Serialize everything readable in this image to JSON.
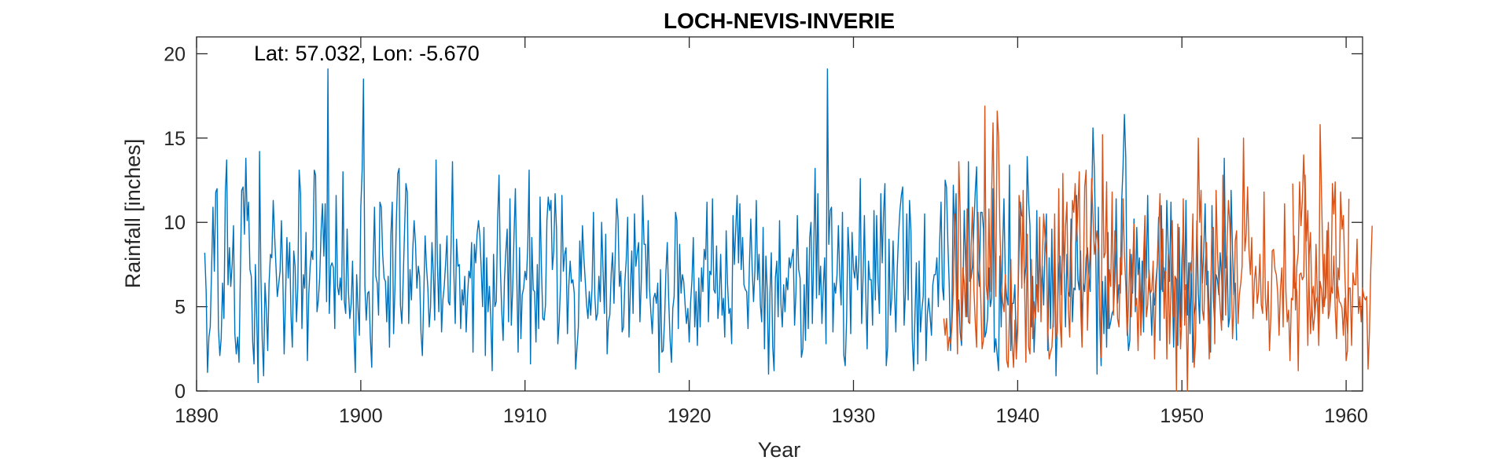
{
  "chart_data": {
    "type": "line",
    "title": "LOCH-NEVIS-INVERIE",
    "xlabel": "Year",
    "ylabel": "Rainfall [inches]",
    "annotation": "Lat: 57.032, Lon: -5.670",
    "xlim": [
      1890,
      1961
    ],
    "ylim": [
      0,
      21
    ],
    "x_ticks": [
      1890,
      1900,
      1910,
      1920,
      1930,
      1940,
      1950,
      1960
    ],
    "y_ticks": [
      0,
      5,
      10,
      15,
      20
    ],
    "grid": false,
    "series": [
      {
        "color": "#0072BD",
        "x_start": 1890.5,
        "step": 0.08333,
        "values": [
          8.2,
          5.9,
          1.1,
          3.2,
          3.8,
          7.2,
          10.9,
          7.1,
          11.8,
          12.0,
          3.7,
          2.1,
          3.1,
          6.4,
          4.3,
          11.8,
          13.7,
          6.3,
          8.5,
          6.2,
          7.5,
          9.8,
          3.4,
          2.2,
          3.2,
          1.7,
          6.9,
          11.9,
          12.1,
          9.3,
          13.8,
          10.1,
          11.2,
          7.2,
          6.8,
          2.9,
          1.6,
          7.5,
          4.2,
          0.5,
          14.2,
          6.9,
          3.1,
          0.9,
          6.4,
          4.8,
          2.4,
          6.4,
          8.1,
          7.9,
          11.3,
          9.3,
          7.4,
          5.6,
          6.3,
          7.1,
          10.1,
          6.8,
          2.2,
          5.4,
          9.1,
          6.7,
          8.8,
          4.5,
          2.6,
          8.3,
          7.4,
          4.1,
          6.2,
          13.1,
          11.7,
          3.7,
          6.9,
          6.1,
          9.4,
          1.8,
          5.7,
          7.4,
          8.3,
          7.8,
          13.1,
          12.8,
          4.7,
          5.4,
          6.7,
          9.5,
          11.1,
          8.0,
          11.1,
          5.3,
          19.1,
          4.6,
          7.4,
          7.6,
          7.3,
          3.7,
          11.6,
          6.2,
          5.7,
          6.7,
          5.4,
          13.0,
          5.3,
          4.6,
          9.6,
          5.9,
          4.3,
          5.2,
          7.7,
          3.4,
          1.1,
          6.9,
          4.9,
          3.3,
          10.9,
          13.1,
          18.5,
          6.2,
          4.2,
          5.8,
          5.9,
          3.2,
          1.4,
          7.2,
          10.9,
          6.8,
          6.4,
          4.5,
          11.2,
          10.9,
          8.1,
          6.7,
          6.5,
          4.1,
          6.8,
          2.6,
          9.3,
          11.2,
          3.4,
          6.2,
          10.1,
          12.9,
          13.2,
          5.1,
          4.0,
          6.6,
          9.6,
          12.3,
          11.8,
          4.0,
          7.2,
          5.4,
          8.4,
          10.1,
          8.7,
          6.1,
          7.4,
          6.8,
          3.5,
          2.1,
          5.5,
          9.2,
          7.4,
          6.1,
          3.8,
          5.0,
          8.8,
          7.0,
          4.2,
          13.7,
          7.6,
          4.7,
          8.7,
          3.5,
          5.4,
          6.2,
          7.6,
          9.2,
          5.3,
          5.1,
          8.6,
          13.6,
          7.1,
          4.0,
          9.0,
          7.4,
          7.5,
          3.7,
          6.0,
          5.1,
          6.8,
          3.5,
          5.6,
          7.1,
          6.7,
          8.8,
          2.3,
          8.7,
          7.6,
          9.3,
          10.1,
          9.2,
          7.3,
          5.0,
          9.7,
          2.1,
          7.9,
          4.7,
          6.2,
          4.3,
          1.2,
          8.1,
          5.0,
          5.3,
          10.1,
          12.8,
          7.3,
          4.8,
          3.0,
          6.6,
          8.3,
          9.6,
          4.1,
          11.4,
          3.9,
          6.1,
          9.3,
          12.0,
          6.7,
          2.3,
          8.5,
          3.1,
          5.7,
          6.1,
          7.1,
          6.6,
          8.5,
          13.1,
          1.6,
          9.1,
          6.0,
          5.9,
          2.9,
          7.5,
          3.7,
          11.5,
          7.4,
          4.3,
          4.2,
          5.1,
          10.1,
          11.5,
          10.7,
          11.3,
          7.2,
          8.3,
          11.7,
          9.6,
          2.8,
          4.1,
          6.4,
          11.6,
          7.1,
          8.1,
          8.5,
          3.4,
          6.2,
          7.7,
          6.4,
          6.6,
          5.8,
          1.3,
          2.6,
          3.8,
          8.9,
          6.5,
          9.8,
          7.9,
          6.6,
          5.1,
          4.3,
          5.9,
          4.5,
          6.1,
          10.6,
          5.7,
          4.2,
          4.6,
          6.8,
          5.3,
          10.0,
          7.3,
          4.6,
          9.3,
          2.2,
          4.1,
          4.5,
          7.0,
          8.2,
          5.2,
          8.3,
          11.4,
          10.1,
          6.2,
          7.1,
          3.5,
          3.8,
          6.5,
          7.8,
          10.3,
          3.2,
          6.1,
          8.3,
          4.6,
          10.5,
          7.4,
          8.2,
          8.8,
          4.1,
          6.6,
          11.6,
          8.7,
          8.7,
          5.5,
          10.1,
          6.1,
          4.6,
          3.4,
          5.5,
          5.8,
          5.2,
          6.4,
          1.1,
          7.2,
          2.3,
          2.4,
          4.3,
          7.1,
          8.8,
          5.4,
          3.1,
          1.7,
          4.9,
          5.6,
          10.6,
          10.1,
          3.7,
          8.7,
          5.8,
          6.9,
          6.5,
          5.1,
          4.0,
          4.9,
          2.9,
          5.2,
          6.6,
          9.1,
          3.8,
          5.9,
          2.7,
          6.7,
          3.8,
          7.3,
          5.9,
          8.4,
          7.8,
          11.2,
          4.1,
          7.1,
          6.9,
          11.4,
          6.0,
          5.8,
          8.6,
          4.3,
          5.6,
          8.1,
          4.5,
          5.5,
          3.2,
          9.5,
          6.4,
          4.6,
          4.9,
          2.8,
          10.4,
          7.5,
          9.6,
          11.6,
          7.6,
          11.1,
          7.2,
          9.1,
          6.3,
          6.0,
          5.9,
          3.7,
          7.5,
          10.2,
          7.2,
          5.3,
          7.1,
          11.3,
          6.6,
          8.1,
          5.1,
          4.1,
          9.7,
          2.5,
          8.0,
          6.0,
          1.0,
          5.8,
          8.2,
          2.6,
          1.2,
          6.7,
          7.7,
          4.4,
          10.1,
          5.2,
          3.8,
          6.3,
          4.7,
          6.7,
          6.0,
          7.9,
          7.3,
          7.9,
          8.4,
          3.9,
          5.9,
          10.4,
          7.2,
          6.7,
          2.0,
          2.5,
          6.3,
          3.0,
          8.5,
          3.7,
          9.1,
          10.0,
          4.0,
          8.4,
          13.2,
          5.5,
          11.7,
          5.7,
          7.4,
          4.0,
          6.3,
          7.9,
          2.8,
          19.1,
          8.7,
          10.7,
          10.9,
          3.5,
          6.4,
          5.8,
          6.9,
          9.8,
          6.8,
          5.1,
          10.6,
          2.1,
          1.5,
          4.3,
          9.7,
          8.0,
          3.4,
          9.4,
          7.2,
          6.7,
          8.0,
          6.0,
          7.9,
          12.6,
          4.0,
          6.6,
          10.4,
          5.8,
          2.5,
          7.7,
          6.6,
          6.6,
          3.9,
          10.7,
          5.4,
          10.4,
          6.5,
          4.6,
          11.7,
          7.6,
          10.6,
          12.3,
          1.5,
          2.6,
          9.0,
          4.5,
          5.5,
          8.9,
          5.9,
          3.5,
          7.3,
          9.3,
          10.7,
          11.6,
          12.1,
          3.9,
          5.8,
          10.5,
          5.4,
          11.3,
          9.5,
          3.1,
          1.2,
          4.6,
          7.6,
          1.6,
          7.7,
          3.5,
          4.8,
          5.6,
          10.5,
          1.8,
          4.5,
          5.5,
          4.5,
          3.3,
          6.3,
          6.9,
          6.9,
          7.9,
          5.0,
          8.8,
          11.2,
          6.2,
          5.4,
          12.5,
          12.1,
          8.7,
          6.3,
          2.4,
          4.9,
          12.2,
          9.3,
          11.7,
          4.3,
          5.4,
          3.5,
          2.7,
          5.8,
          10.7,
          7.6,
          4.4,
          13.6,
          6.5,
          6.7,
          7.4,
          9.7,
          11.8,
          13.3,
          7.2,
          6.2,
          10.6,
          10.6,
          9.6,
          3.2,
          3.5,
          4.3,
          7.3,
          5.0,
          5.5,
          12.0,
          2.3,
          3.1,
          2.2,
          1.2,
          8.0,
          3.8,
          8.5,
          11.4,
          6.5,
          5.6,
          5.1,
          13.4,
          2.4,
          5.2,
          5.2,
          6.3,
          2.4,
          4.2,
          8.2,
          11.2,
          10.4,
          10.3,
          6.4,
          7.4,
          13.9,
          11.3,
          9.8,
          3.8,
          6.8,
          2.3,
          4.7,
          10.7,
          4.7,
          8.5,
          5.8,
          7.4,
          5.1,
          8.7,
          10.5,
          2.4,
          7.9,
          3.7,
          9.6,
          3.8,
          7.9,
          0.9,
          4.2,
          7.2,
          8.0,
          5.7,
          9.5,
          7.2,
          3.8,
          8.1,
          5.9,
          5.6,
          10.2,
          4.1,
          6.1,
          6.0,
          11.6,
          6.6,
          6.0,
          8.3,
          3.8,
          6.4,
          5.9,
          7.9,
          8.5,
          6.9,
          5.9,
          10.5,
          15.6,
          13.2,
          9.1,
          1.0,
          10.9,
          4.0,
          1.5,
          6.5,
          3.4,
          6.8,
          2.6,
          9.4,
          3.7,
          4.1,
          4.6,
          4.8,
          6.5,
          11.4,
          5.2,
          6.3,
          5.8,
          11.2,
          13.2,
          16.4,
          13.9,
          4.1,
          2.4,
          3.0,
          8.1,
          5.8,
          10.2,
          4.7,
          9.7,
          6.9,
          7.9,
          4.4,
          7.7,
          3.5,
          9.8,
          6.7,
          11.6,
          6.2,
          5.6,
          3.3,
          5.8,
          5.1,
          6.5,
          7.5,
          10.3,
          3.0,
          11.0,
          5.9,
          7.3,
          5.8,
          11.3,
          8.5,
          6.5,
          11.2,
          6.4,
          2.6,
          6.8,
          6.6,
          2.7,
          9.7,
          3.8,
          7.8,
          9.6,
          6.0,
          11.3,
          4.5,
          7.6,
          3.4,
          7.7,
          1.7,
          4.5,
          5.3,
          10.1,
          5.8,
          4.0,
          9.2,
          6.4,
          8.3,
          11.1,
          6.3,
          7.1,
          4.4,
          2.3,
          11.0,
          5.4,
          4.0,
          6.9,
          6.6,
          5.7,
          8.2,
          6.8,
          4.2,
          13.8,
          7.3,
          8.0,
          3.8,
          4.4,
          11.9,
          8.3,
          5.7,
          6.4,
          3.0
        ]
      },
      {
        "color": "#D95319",
        "x_start": 1935.5,
        "step": 0.08333,
        "values": [
          4.3,
          3.3,
          4.3,
          2.4,
          3.2,
          2.8,
          3.9,
          6.2,
          10.5,
          6.5,
          2.2,
          13.6,
          10.5,
          3.0,
          7.3,
          6.4,
          4.4,
          10.8,
          4.1,
          4.0,
          8.6,
          10.9,
          6.0,
          4.1,
          2.6,
          10.6,
          7.7,
          5.5,
          2.5,
          3.0,
          16.9,
          6.3,
          5.4,
          10.8,
          5.9,
          11.8,
          15.9,
          9.5,
          5.6,
          16.6,
          15.1,
          9.6,
          6.5,
          5.3,
          4.7,
          6.9,
          1.8,
          1.4,
          4.6,
          7.8,
          2.8,
          1.4,
          4.2,
          1.9,
          3.6,
          11.6,
          10.7,
          6.1,
          11.9,
          6.5,
          1.7,
          9.3,
          2.6,
          2.2,
          7.8,
          3.1,
          5.3,
          4.3,
          6.3,
          4.7,
          10.3,
          4.1,
          7.9,
          10.5,
          9.1,
          8.1,
          3.6,
          1.9,
          2.3,
          2.6,
          4.4,
          10.5,
          3.1,
          3.5,
          12.0,
          4.1,
          2.6,
          12.9,
          7.0,
          9.8,
          11.2,
          4.9,
          3.2,
          7.2,
          11.3,
          10.6,
          12.3,
          8.9,
          10.7,
          13.0,
          5.0,
          2.6,
          6.8,
          12.1,
          13.1,
          3.6,
          6.7,
          8.4,
          12.6,
          10.5,
          8.1,
          8.9,
          9.5,
          8.3,
          5.1,
          2.0,
          15.2,
          7.9,
          8.2,
          12.4,
          3.7,
          7.2,
          6.2,
          11.8,
          4.5,
          9.5,
          7.6,
          4.3,
          3.8,
          7.9,
          6.9,
          11.4,
          8.1,
          6.2,
          3.3,
          5.1,
          8.4,
          4.4,
          7.4,
          9.9,
          5.0,
          5.5,
          2.4,
          7.2,
          3.3,
          5.4,
          8.0,
          10.4,
          4.4,
          5.1,
          7.2,
          5.8,
          6.0,
          7.7,
          1.9,
          5.8,
          7.4,
          9.5,
          11.7,
          6.0,
          9.6,
          4.3,
          7.1,
          1.9,
          8.1,
          2.8,
          6.1,
          10.1,
          4.4,
          6.8,
          0.0,
          9.9,
          5.5,
          2.5,
          4.5,
          11.4,
          3.9,
          6.3,
          0.0,
          5.1,
          7.6,
          7.0,
          10.5,
          1.4,
          3.0,
          8.7,
          15.0,
          10.0,
          11.9,
          4.8,
          4.2,
          7.4,
          8.8,
          4.8,
          1.9,
          5.8,
          9.6,
          9.7,
          2.8,
          11.9,
          8.2,
          6.4,
          4.8,
          3.6,
          12.8,
          8.7,
          4.5,
          8.8,
          11.3,
          10.0,
          7.3,
          3.1,
          5.1,
          8.9,
          9.5,
          4.0,
          5.7,
          6.4,
          7.4,
          15.0,
          8.3,
          9.3,
          12.1,
          8.4,
          6.9,
          9.1,
          4.3,
          6.6,
          7.4,
          5.2,
          5.9,
          8.1,
          5.1,
          4.6,
          11.8,
          5.5,
          4.2,
          6.5,
          2.4,
          4.4,
          8.3,
          8.4,
          7.2,
          6.9,
          5.8,
          3.3,
          6.0,
          7.3,
          3.8,
          11.1,
          5.9,
          4.1,
          4.8,
          1.8,
          5.5,
          5.4,
          9.2,
          4.8,
          7.4,
          8.2,
          12.4,
          9.8,
          11.3,
          14.0,
          11.4,
          7.1,
          2.7,
          8.1,
          9.4,
          5.1,
          3.6,
          4.5,
          5.3,
          5.6,
          3.2,
          15.8,
          11.7,
          7.8,
          5.0,
          5.8,
          9.5,
          4.3,
          4.8,
          5.9,
          12.3,
          10.5,
          12.4,
          5.5,
          6.2,
          5.3,
          5.2,
          4.9,
          3.3,
          5.5,
          1.8,
          2.4,
          11.4
        ]
      },
      {
        "color": "#D95319",
        "x_start": 1956.75,
        "step": 0.08333,
        "values": [
          12.3,
          6.1,
          6.4,
          5.9,
          1.2,
          6.9,
          7.0,
          6.6,
          6.8,
          12.8,
          8.9,
          10.7,
          6.1,
          3.4,
          5.6,
          6.2,
          4.6,
          8.7,
          5.5,
          2.7,
          6.5,
          6.0,
          4.6,
          8.1,
          5.5,
          7.3,
          10.0,
          4.8,
          6.2,
          5.8,
          8.0,
          4.9,
          3.1,
          7.3,
          6.6,
          11.8,
          9.6,
          10.4,
          7.1,
          4.7,
          3.4,
          6.1,
          6.1,
          2.7,
          7.0,
          6.3,
          6.3,
          9.0,
          4.6,
          5.6,
          4.1,
          6.1,
          5.6,
          5.4,
          5.6,
          1.3,
          3.4,
          7.1,
          9.8
        ]
      }
    ]
  }
}
